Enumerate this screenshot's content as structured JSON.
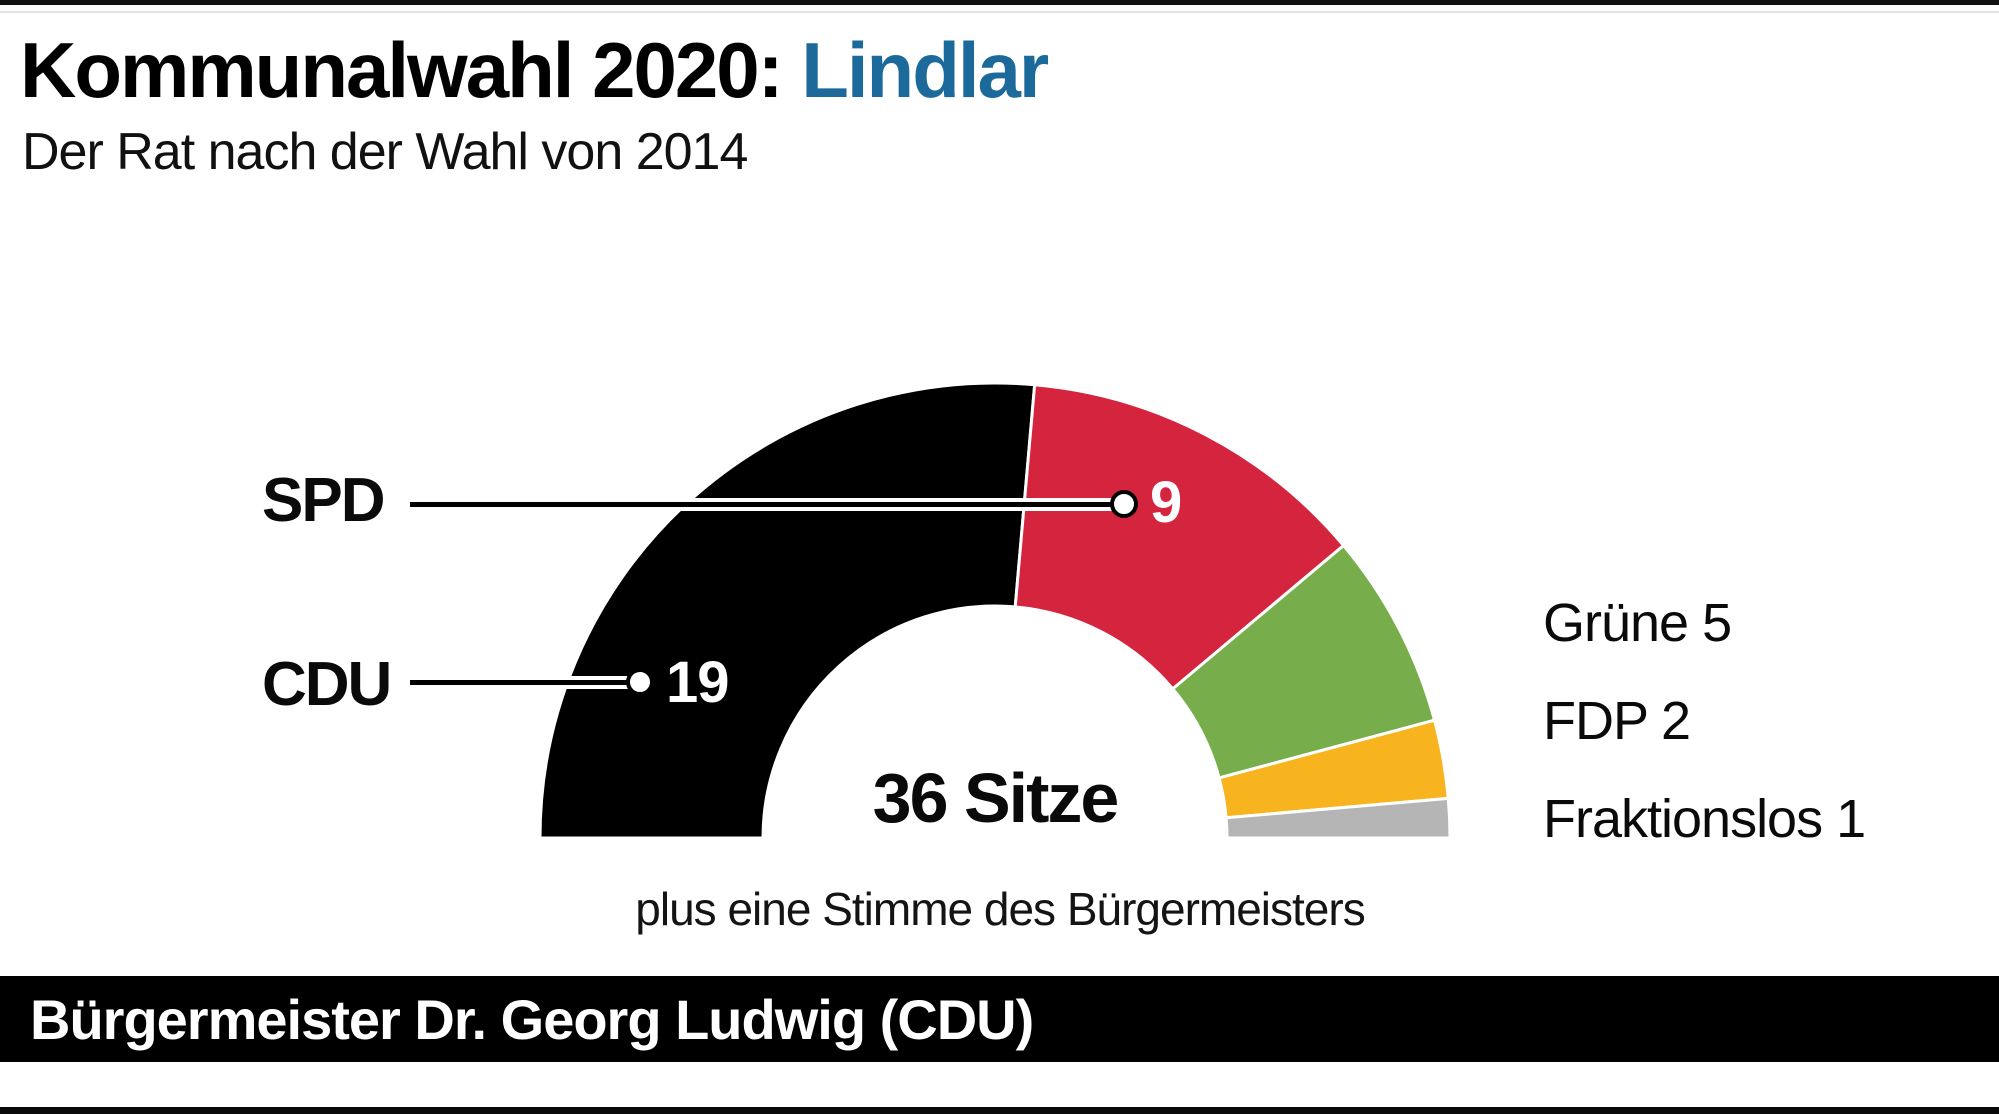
{
  "page": {
    "title_prefix": "Kommunalwahl 2020: ",
    "title_highlight": "Lindlar",
    "title_highlight_color": "#1b6a9b",
    "subtitle": "Der Rat nach der Wahl von 2014",
    "footer": "Bürgermeister Dr. Georg Ludwig (CDU)"
  },
  "chart_data": {
    "type": "pie",
    "variant": "semicircle-donut",
    "title": "Kommunalwahl 2020: Lindlar",
    "subtitle": "Der Rat nach der Wahl von 2014",
    "total_seats": 36,
    "center_label": "36 Sitze",
    "footnote": "plus eine Stimme des Bürgermeisters",
    "legend_position": "right",
    "series": [
      {
        "name": "CDU",
        "value": 19,
        "color": "#000000",
        "label_style": "callout"
      },
      {
        "name": "SPD",
        "value": 9,
        "color": "#d4243e",
        "label_style": "callout"
      },
      {
        "name": "Grüne",
        "value": 5,
        "color": "#77ad4a",
        "label_style": "legend"
      },
      {
        "name": "FDP",
        "value": 2,
        "color": "#f8b41f",
        "label_style": "legend"
      },
      {
        "name": "Fraktionslos",
        "value": 1,
        "color": "#b5b5b5",
        "label_style": "legend"
      }
    ]
  }
}
